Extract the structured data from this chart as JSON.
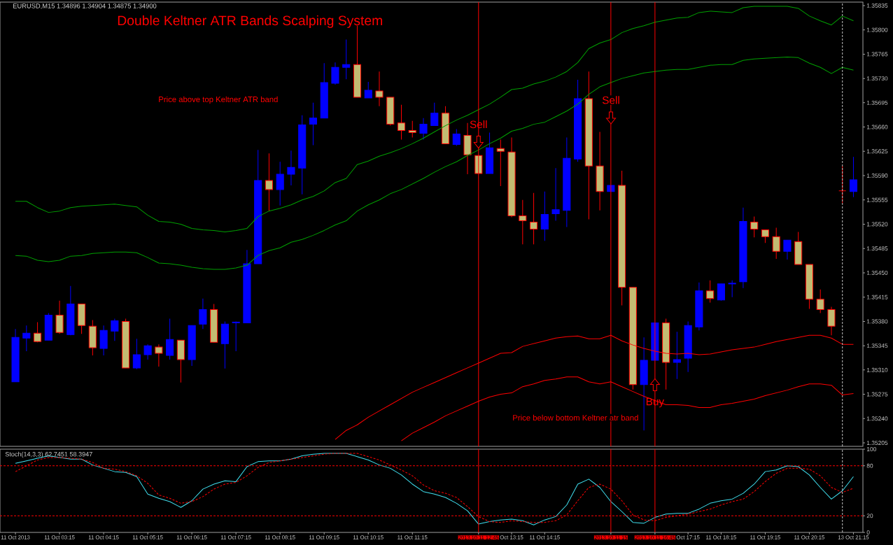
{
  "chart_data": [
    {
      "type": "candlestick",
      "title": "Double Keltner ATR Bands Scalping System",
      "annotations": [
        "EURUSD,M15 1.34896 1.34904 1.34875 1.34900",
        "Price above top Keltner ATR band",
        {
          "text": "Sell",
          "x": "2013.10.11 12:45",
          "y": 1.35664
        },
        "Sell",
        {
          "text": "Buy",
          "x": "2013.10.11 16:45",
          "y": 1.35263
        },
        "Price below bottom Keltner atr band"
      ],
      "categories": [
        "11 Oct 2013",
        null,
        null,
        null,
        "11 Oct 03:15",
        null,
        null,
        null,
        "11 Oct 04:15",
        null,
        null,
        null,
        "11 Oct 05:15",
        null,
        null,
        null,
        "11 Oct 06:15",
        null,
        null,
        null,
        "11 Oct 07:15",
        null,
        null,
        null,
        "11 Oct 08:15",
        null,
        null,
        null,
        "11 Oct 09:15",
        null,
        null,
        null,
        "11 Oct 10:15",
        null,
        null,
        null,
        "11 Oct 11:15",
        null,
        null,
        null,
        null,
        null,
        "2013.10.11 12:45",
        null,
        null,
        "Oct 13:15",
        null,
        null,
        "11 Oct 14:15",
        null,
        null,
        null,
        null,
        null,
        "2013.10.11 15",
        null,
        null,
        null,
        "2013.10.11 16:45",
        null,
        null,
        "Oct 17:15",
        null,
        null,
        "11 Oct 18:15",
        null,
        null,
        null,
        "11 Oct 19:15",
        null,
        null,
        null,
        "11 Oct 20:15",
        null,
        null,
        null,
        "13 Oct 21:15"
      ],
      "series": [
        {
          "type": "line",
          "color": "#00a000",
          "values": [
            1.35553,
            1.35553,
            1.35544,
            1.35537,
            1.35539,
            1.35544,
            1.35546,
            1.35547,
            1.35548,
            1.35549,
            1.35547,
            1.35545,
            1.35533,
            1.35524,
            1.35523,
            1.3552,
            1.35514,
            1.35512,
            1.35511,
            1.35509,
            1.35511,
            1.35514,
            1.35531,
            1.35539,
            1.35543,
            1.35548,
            1.35555,
            1.3556,
            1.35568,
            1.3558,
            1.35586,
            1.35606,
            1.35611,
            1.35618,
            1.35623,
            1.35629,
            1.35636,
            1.35644,
            1.35653,
            1.35662,
            1.3567,
            1.35677,
            1.35685,
            1.35693,
            1.35703,
            1.35714,
            1.35716,
            1.35722,
            1.35726,
            1.35732,
            1.3574,
            1.35753,
            1.35773,
            1.35781,
            1.35786,
            1.35796,
            1.35802,
            1.35806,
            1.35811,
            1.35814,
            1.35817,
            1.35818,
            1.35825,
            1.35827,
            1.35826,
            1.35825,
            1.35832,
            1.35834,
            1.35834,
            1.35834,
            1.35834,
            1.35831,
            1.3582,
            1.35813,
            1.35807,
            1.3582,
            1.35813
          ]
        },
        {
          "type": "line",
          "color": "#00a000",
          "values": [
            1.35475,
            1.35474,
            1.35468,
            1.35466,
            1.35468,
            1.35474,
            1.35475,
            1.35478,
            1.35479,
            1.3548,
            1.3548,
            1.35479,
            1.35472,
            1.35464,
            1.35463,
            1.35461,
            1.35458,
            1.35456,
            1.35455,
            1.35455,
            1.35457,
            1.35461,
            1.35475,
            1.35482,
            1.35486,
            1.35494,
            1.35498,
            1.35504,
            1.35511,
            1.35519,
            1.35525,
            1.35539,
            1.35548,
            1.35555,
            1.35564,
            1.3557,
            1.35578,
            1.35586,
            1.35595,
            1.35603,
            1.3561,
            1.35619,
            1.35627,
            1.35636,
            1.35644,
            1.35654,
            1.35658,
            1.35664,
            1.35667,
            1.35675,
            1.35683,
            1.35693,
            1.35707,
            1.35718,
            1.35724,
            1.3573,
            1.35734,
            1.35738,
            1.3574,
            1.35742,
            1.35743,
            1.35743,
            1.35746,
            1.35749,
            1.3575,
            1.3575,
            1.35756,
            1.35758,
            1.35759,
            1.3576,
            1.35761,
            1.3576,
            1.35752,
            1.35746,
            1.35737,
            1.35746,
            1.35742
          ]
        },
        {
          "type": "line",
          "color": "#ff0000",
          "values": [
            null,
            null,
            null,
            null,
            null,
            null,
            null,
            null,
            null,
            null,
            null,
            null,
            null,
            null,
            null,
            null,
            null,
            null,
            null,
            null,
            null,
            null,
            null,
            null,
            null,
            null,
            null,
            null,
            null,
            1.3521,
            1.35223,
            1.35231,
            1.35242,
            1.35251,
            1.3526,
            1.35269,
            1.35278,
            1.35285,
            1.35292,
            1.35299,
            1.35306,
            1.35313,
            1.3532,
            1.35327,
            1.35334,
            1.35335,
            1.35344,
            1.35348,
            1.35352,
            1.35356,
            1.35358,
            1.35359,
            1.35355,
            1.35355,
            1.3536,
            1.35352,
            1.35346,
            1.35341,
            1.35337,
            1.35334,
            1.35333,
            1.35334,
            1.35332,
            1.35333,
            1.35336,
            1.35339,
            1.35341,
            1.35343,
            1.35347,
            1.35351,
            1.35354,
            1.35357,
            1.3536,
            1.3536,
            1.35356,
            1.35347,
            1.35347
          ]
        },
        {
          "type": "line",
          "color": "#ff0000",
          "values": [
            null,
            null,
            null,
            null,
            null,
            null,
            null,
            null,
            null,
            null,
            null,
            null,
            null,
            null,
            null,
            null,
            null,
            null,
            null,
            null,
            null,
            null,
            null,
            null,
            null,
            null,
            null,
            null,
            null,
            null,
            null,
            null,
            null,
            null,
            null,
            1.35208,
            1.35219,
            1.35227,
            1.35235,
            1.35244,
            1.35251,
            1.35258,
            1.35265,
            1.35271,
            1.35275,
            1.35277,
            1.35286,
            1.3529,
            1.35295,
            1.35297,
            1.353,
            1.353,
            1.35293,
            1.3529,
            1.35293,
            1.35286,
            1.35279,
            1.35272,
            1.35266,
            1.3526,
            1.3526,
            1.35259,
            1.35256,
            1.35256,
            1.3526,
            1.35262,
            1.35265,
            1.35268,
            1.35273,
            1.35277,
            1.35281,
            1.35286,
            1.3529,
            1.3529,
            1.35288,
            1.35274,
            1.35276
          ]
        },
        {
          "type": "candlestick",
          "color": "#ff0000",
          "colors": [
            "#0000ff",
            "#0000ff",
            "#c2bb72",
            "#0000ff",
            "#c2bb72",
            "#0000ff",
            "#c2bb72",
            "#c2bb72",
            "#0000ff",
            "#0000ff",
            "#c2bb72",
            "#0000ff",
            "#0000ff",
            "#c2bb72",
            "#0000ff",
            "#c2bb72",
            "#0000ff",
            "#0000ff",
            "#c2bb72",
            "#0000ff",
            "#0000ff",
            "#0000ff",
            "#0000ff",
            "#c2bb72",
            "#0000ff",
            "#0000ff",
            "#0000ff",
            "#0000ff",
            "#0000ff",
            "#0000ff",
            "#0000ff",
            "#c2bb72",
            "#0000ff",
            "#c2bb72",
            "#c2bb72",
            "#c2bb72",
            "#c2bb72",
            "#0000ff",
            "#0000ff",
            "#c2bb72",
            "#0000ff",
            "#c2bb72",
            "#c2bb72",
            "#0000ff",
            "#c2bb72",
            "#c2bb72",
            "#c2bb72",
            "#c2bb72",
            "#0000ff",
            "#0000ff",
            "#0000ff",
            "#0000ff",
            "#c2bb72",
            "#c2bb72",
            "#0000ff",
            "#c2bb72",
            "#c2bb72",
            "#0000ff",
            "#0000ff",
            "#c2bb72",
            "#0000ff",
            "#0000ff",
            "#0000ff",
            "#c2bb72",
            "#0000ff",
            "#0000ff",
            "#0000ff",
            "#c2bb72",
            "#c2bb72",
            "#c2bb72",
            "#0000ff",
            "#c2bb72",
            "#c2bb72",
            "#c2bb72",
            "#c2bb72",
            "#ff0000",
            "#0000ff"
          ],
          "ohlc": [
            [
              1.35293,
              1.35369,
              1.35293,
              1.35357
            ],
            [
              1.35356,
              1.35374,
              1.35337,
              1.35363
            ],
            [
              1.35363,
              1.35379,
              1.3535,
              1.35351
            ],
            [
              1.35353,
              1.35392,
              1.35353,
              1.35389
            ],
            [
              1.35389,
              1.3541,
              1.35362,
              1.35364
            ],
            [
              1.35361,
              1.35431,
              1.3536,
              1.35405
            ],
            [
              1.35405,
              1.35405,
              1.35362,
              1.35374
            ],
            [
              1.35373,
              1.35382,
              1.35331,
              1.35342
            ],
            [
              1.35341,
              1.35374,
              1.35331,
              1.35367
            ],
            [
              1.35366,
              1.35384,
              1.35352,
              1.35381
            ],
            [
              1.3538,
              1.35384,
              1.35313,
              1.35313
            ],
            [
              1.35313,
              1.35355,
              1.35311,
              1.35332
            ],
            [
              1.35332,
              1.35347,
              1.35325,
              1.35345
            ],
            [
              1.35343,
              1.35347,
              1.35315,
              1.35334
            ],
            [
              1.35331,
              1.35384,
              1.35325,
              1.35354
            ],
            [
              1.35353,
              1.35353,
              1.35292,
              1.35325
            ],
            [
              1.35325,
              1.35374,
              1.35316,
              1.35374
            ],
            [
              1.35376,
              1.35413,
              1.35369,
              1.35397
            ],
            [
              1.35397,
              1.35405,
              1.3535,
              1.3535
            ],
            [
              1.35348,
              1.3538,
              1.35312,
              1.35376
            ],
            [
              1.35378,
              1.3538,
              1.35337,
              1.35379
            ],
            [
              1.35378,
              1.35483,
              1.35378,
              1.35463
            ],
            [
              1.35463,
              1.35627,
              1.35463,
              1.35583
            ],
            [
              1.35583,
              1.35622,
              1.35539,
              1.3557
            ],
            [
              1.3557,
              1.3561,
              1.35547,
              1.35592
            ],
            [
              1.35592,
              1.35626,
              1.35576,
              1.35602
            ],
            [
              1.35601,
              1.35677,
              1.35563,
              1.35663
            ],
            [
              1.35664,
              1.35695,
              1.35634,
              1.35673
            ],
            [
              1.35673,
              1.35752,
              1.35673,
              1.35724
            ],
            [
              1.35723,
              1.35753,
              1.35721,
              1.35746
            ],
            [
              1.35746,
              1.35786,
              1.35729,
              1.3575
            ],
            [
              1.3575,
              1.35806,
              1.35703,
              1.35703
            ],
            [
              1.35702,
              1.35725,
              1.35702,
              1.35713
            ],
            [
              1.35712,
              1.3574,
              1.3569,
              1.35703
            ],
            [
              1.35703,
              1.35703,
              1.35662,
              1.35664
            ],
            [
              1.35666,
              1.35692,
              1.35642,
              1.35655
            ],
            [
              1.35655,
              1.35669,
              1.35645,
              1.35652
            ],
            [
              1.35651,
              1.35673,
              1.35642,
              1.35664
            ],
            [
              1.35662,
              1.35695,
              1.35662,
              1.3568
            ],
            [
              1.3568,
              1.3569,
              1.35636,
              1.35636
            ],
            [
              1.35635,
              1.35657,
              1.35633,
              1.3565
            ],
            [
              1.35648,
              1.35666,
              1.35592,
              1.3562
            ],
            [
              1.35619,
              1.35619,
              1.35593,
              1.35593
            ],
            [
              1.35593,
              1.35652,
              1.35593,
              1.3563
            ],
            [
              1.35629,
              1.35642,
              1.35575,
              1.35625
            ],
            [
              1.35624,
              1.35645,
              1.3553,
              1.35532
            ],
            [
              1.35532,
              1.35555,
              1.35491,
              1.35525
            ],
            [
              1.35523,
              1.35565,
              1.35491,
              1.35513
            ],
            [
              1.35513,
              1.35567,
              1.35496,
              1.35534
            ],
            [
              1.35535,
              1.35601,
              1.35525,
              1.35541
            ],
            [
              1.3554,
              1.35645,
              1.35516,
              1.35615
            ],
            [
              1.35614,
              1.35728,
              1.3561,
              1.35701
            ],
            [
              1.35701,
              1.3574,
              1.35527,
              1.35604
            ],
            [
              1.35604,
              1.35653,
              1.3554,
              1.35567
            ],
            [
              1.35567,
              1.35576,
              1.35567,
              1.35576
            ],
            [
              1.35576,
              1.35597,
              1.35403,
              1.35429
            ],
            [
              1.35429,
              1.35429,
              1.35282,
              1.35289
            ],
            [
              1.35289,
              1.35357,
              1.35223,
              1.35324
            ],
            [
              1.35324,
              1.35378,
              1.35324,
              1.35378
            ],
            [
              1.35378,
              1.35384,
              1.35282,
              1.35321
            ],
            [
              1.35321,
              1.35365,
              1.35297,
              1.35325
            ],
            [
              1.35327,
              1.3538,
              1.35307,
              1.35374
            ],
            [
              1.35372,
              1.35436,
              1.35367,
              1.35424
            ],
            [
              1.35424,
              1.35439,
              1.35407,
              1.35413
            ],
            [
              1.35411,
              1.35434,
              1.3541,
              1.35434
            ],
            [
              1.35434,
              1.35439,
              1.35415,
              1.35435
            ],
            [
              1.35437,
              1.35544,
              1.35428,
              1.35524
            ],
            [
              1.35523,
              1.35531,
              1.35501,
              1.35513
            ],
            [
              1.35512,
              1.35512,
              1.35493,
              1.35502
            ],
            [
              1.35502,
              1.35515,
              1.3547,
              1.35481
            ],
            [
              1.35481,
              1.35497,
              1.35469,
              1.35497
            ],
            [
              1.35495,
              1.35509,
              1.35462,
              1.35462
            ],
            [
              1.35462,
              1.35462,
              1.35398,
              1.35412
            ],
            [
              1.35412,
              1.35426,
              1.35392,
              1.35397
            ],
            [
              1.35397,
              1.35401,
              1.3536,
              1.35373
            ],
            [
              1.35568,
              1.35604,
              1.3555,
              1.35568
            ],
            [
              1.35567,
              1.35617,
              1.35559,
              1.35584
            ]
          ]
        }
      ],
      "ylim": [
        1.352,
        1.3584
      ],
      "yticks": [
        1.35205,
        {
          "value": 1.3524,
          "label": "1.35240"
        },
        1.35275,
        {
          "value": 1.3531,
          "label": "1.35310"
        },
        1.35345,
        {
          "value": 1.3538,
          "label": "1.35380"
        },
        1.35415,
        {
          "value": 1.3545,
          "label": "1.35450"
        },
        1.35485,
        {
          "value": 1.3552,
          "label": "1.35520"
        },
        1.35555,
        {
          "value": 1.3559,
          "label": "1.35590"
        },
        1.35625,
        {
          "value": 1.3566,
          "label": "1.35660"
        },
        1.35695,
        {
          "value": 1.3573,
          "label": "1.35730"
        },
        1.35765,
        {
          "value": 1.358,
          "label": "1.35800"
        },
        1.35835
      ],
      "ref_lines": [
        {
          "axis": "x",
          "value": "2013.10.11 12:45",
          "color": "#ff0000"
        },
        {
          "axis": "x",
          "value": "2013.10.11 15",
          "color": "#ff0000"
        },
        {
          "axis": "x",
          "value": "2013.10.11 16:45",
          "color": "#ff0000"
        }
      ],
      "tick_labels": "y"
    },
    {
      "type": "line",
      "title": "Stoch(14,3,3) 62.7451 58.3947",
      "categories": [
        "11 Oct 2013",
        null,
        null,
        null,
        "11 Oct 03:15",
        null,
        null,
        null,
        "11 Oct 04:15",
        null,
        null,
        null,
        "11 Oct 05:15",
        null,
        null,
        null,
        "11 Oct 06:15",
        null,
        null,
        null,
        "11 Oct 07:15",
        null,
        null,
        null,
        "11 Oct 08:15",
        null,
        null,
        null,
        "11 Oct 09:15",
        null,
        null,
        null,
        "11 Oct 10:15",
        null,
        null,
        null,
        "11 Oct 11:15",
        null,
        null,
        null,
        null,
        null,
        "2013.10.11 12:45",
        null,
        null,
        "Oct 13:15",
        null,
        null,
        "11 Oct 14:15",
        null,
        null,
        null,
        null,
        null,
        "2013.10.11 15",
        null,
        null,
        null,
        "2013.10.11 16:45",
        null,
        null,
        "Oct 17:15",
        null,
        null,
        "11 Oct 18:15",
        null,
        null,
        null,
        "11 Oct 19:15",
        null,
        null,
        null,
        "11 Oct 20:15",
        null,
        null,
        null,
        "13 Oct 21:15"
      ],
      "series": [
        {
          "color": "#40e0f0",
          "values": [
            83,
            86,
            89,
            92,
            90,
            88,
            88,
            81,
            77,
            73,
            72,
            67,
            46,
            41,
            37,
            30,
            38,
            52,
            58,
            62,
            61,
            79,
            85,
            86,
            86,
            88,
            92,
            94,
            95,
            95,
            95,
            91,
            87,
            81,
            77,
            69,
            58,
            49,
            46,
            42,
            35,
            26,
            10,
            13,
            15,
            16,
            14,
            9,
            15,
            19,
            33,
            58,
            64,
            54,
            37,
            25,
            12,
            11,
            18,
            22,
            23,
            23,
            28,
            35,
            38,
            40,
            47,
            58,
            73,
            75,
            80,
            79,
            69,
            54,
            40,
            50,
            67
          ]
        },
        {
          "color": "#ff0000",
          "line_style": "dashed",
          "values": [
            73,
            80,
            87,
            90,
            90,
            89,
            88,
            84,
            77,
            76,
            73,
            68,
            59,
            45,
            41,
            35,
            37,
            43,
            52,
            58,
            60,
            68,
            78,
            84,
            86,
            88,
            90,
            92,
            94,
            95,
            95,
            95,
            91,
            87,
            81,
            75,
            68,
            57,
            50,
            47,
            42,
            31,
            19,
            13,
            12,
            14,
            13,
            12,
            12,
            14,
            21,
            38,
            54,
            58,
            52,
            38,
            21,
            15,
            14,
            18,
            20,
            22,
            25,
            28,
            33,
            37,
            40,
            49,
            61,
            71,
            77,
            77,
            76,
            68,
            54,
            48,
            53
          ]
        }
      ],
      "ylim": [
        0,
        100
      ],
      "yticks": [
        0,
        20,
        80,
        100
      ],
      "ref_lines": [
        {
          "axis": "x",
          "value": "2013.10.11 12:45",
          "color": "#ff0000"
        },
        {
          "axis": "x",
          "value": "2013.10.11 15",
          "color": "#ff0000"
        },
        {
          "axis": "x",
          "value": "2013.10.11 16:45",
          "color": "#ff0000"
        },
        {
          "axis": "y",
          "value": 80,
          "color": "#ff0000",
          "line_style": "dashed"
        },
        {
          "axis": "y",
          "value": 20,
          "color": "#ff0000",
          "line_style": "dashed"
        }
      ]
    }
  ]
}
